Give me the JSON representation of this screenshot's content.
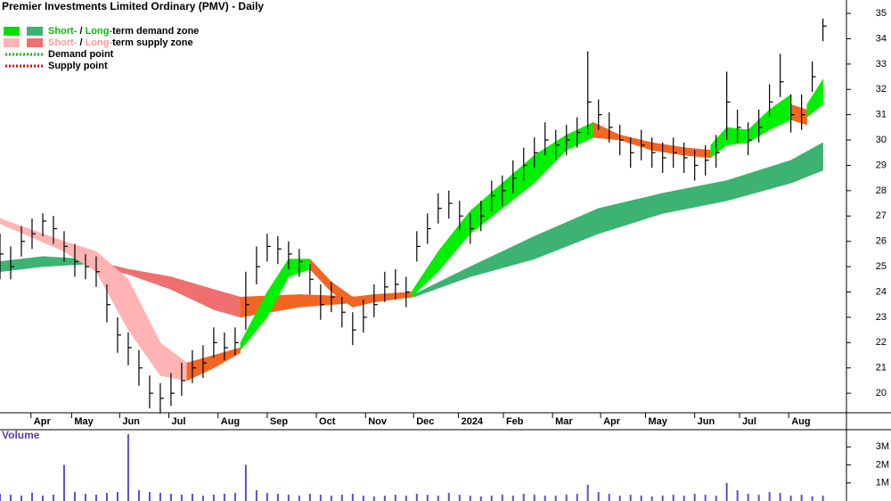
{
  "chart_data": [
    {
      "type": "ohlc",
      "title": "Premier Investments Limited Ordinary (PMV) - Daily",
      "legend": [
        {
          "short": "Short-",
          "sep": " / ",
          "long": "Long-",
          "rest": "term demand zone",
          "colors": [
            "#00e000",
            "#3cb371"
          ],
          "accent": "#00c000"
        },
        {
          "short": "Short-",
          "sep": " / ",
          "long": "Long-",
          "rest": "term supply zone",
          "colors": [
            "#ffb3b3",
            "#f07070"
          ],
          "accent": "#ff9999"
        },
        {
          "text": "Demand point",
          "color": "#00c000"
        },
        {
          "text": "Supply point",
          "color": "#e00000"
        }
      ],
      "xlim": [
        0,
        79.2
      ],
      "xticks": [
        {
          "value": 2.9,
          "label": "Apr"
        },
        {
          "value": 6.7,
          "label": "May"
        },
        {
          "value": 11.2,
          "label": "Jun"
        },
        {
          "value": 15.8,
          "label": "Jul"
        },
        {
          "value": 20.4,
          "label": "Aug"
        },
        {
          "value": 25,
          "label": "Sep"
        },
        {
          "value": 29.6,
          "label": "Oct"
        },
        {
          "value": 34.2,
          "label": "Nov"
        },
        {
          "value": 38.7,
          "label": "Dec"
        },
        {
          "value": 42.9,
          "label": "2024"
        },
        {
          "value": 47.1,
          "label": "Feb"
        },
        {
          "value": 51.7,
          "label": "Mar"
        },
        {
          "value": 56.2,
          "label": "Apr"
        },
        {
          "value": 60.4,
          "label": "May"
        },
        {
          "value": 65,
          "label": "Jun"
        },
        {
          "value": 69.2,
          "label": "Jul"
        },
        {
          "value": 73.8,
          "label": "Aug"
        }
      ],
      "ylim": [
        19.23,
        35.53
      ],
      "yticks": [
        20,
        21,
        22,
        23,
        24,
        25,
        26,
        27,
        28,
        29,
        30,
        31,
        32,
        33,
        34,
        35
      ],
      "color": "#000000",
      "high": [
        26.3,
        25.8,
        26.6,
        26.9,
        27.1,
        27,
        26.4,
        25.9,
        25.5,
        25.4,
        24.3,
        23,
        22.4,
        21.7,
        20.7,
        20.4,
        20.8,
        21.2,
        21.7,
        21.9,
        22.6,
        22.4,
        22.6,
        24.8,
        25.8,
        26.3,
        26.2,
        26,
        25.7,
        25.1,
        24.3,
        24.4,
        23.8,
        23.2,
        23.7,
        24.3,
        24.8,
        24.9,
        24.6,
        26.4,
        27.1,
        27.9,
        28,
        27.6,
        27.1,
        27.6,
        28.4,
        28.6,
        29.2,
        29.7,
        30.1,
        30.7,
        30.4,
        30.6,
        30.9,
        33.5,
        31.6,
        31.1,
        30.6,
        30.1,
        30.4,
        30.1,
        29.9,
        30.1,
        29.9,
        29.6,
        29.8,
        30.2,
        32.7,
        31.2,
        30.7,
        31.2,
        32.2,
        33.4,
        31.8,
        31.8,
        33.1,
        34.8
      ],
      "low": [
        24.5,
        24.5,
        25.4,
        25.7,
        26.2,
        25.9,
        25.2,
        24.6,
        24.5,
        24.2,
        22.8,
        21.6,
        21.1,
        20.3,
        19.4,
        19.2,
        19.5,
        19.9,
        20.4,
        20.6,
        21.4,
        21.3,
        21.5,
        22.5,
        24.3,
        25.2,
        25.1,
        24.9,
        24.6,
        23.9,
        22.9,
        23.2,
        22.6,
        21.9,
        22.4,
        23,
        23.6,
        23.7,
        23.4,
        25.2,
        25.9,
        26.7,
        26.9,
        26.4,
        25.9,
        26.4,
        27.2,
        27.4,
        27.9,
        28.4,
        28.9,
        29.4,
        29.2,
        29.4,
        29.7,
        30.2,
        30.4,
        29.9,
        29.4,
        28.9,
        29.2,
        28.9,
        28.7,
        28.9,
        28.7,
        28.4,
        28.6,
        28.9,
        30,
        29.9,
        29.4,
        29.9,
        30.9,
        31.7,
        30.3,
        30.4,
        31.9,
        33.9
      ],
      "close": [
        25.5,
        25,
        26,
        26.3,
        26.8,
        26.5,
        25.8,
        25.2,
        25,
        24.8,
        23.5,
        22.3,
        21.8,
        21,
        20,
        19.8,
        20,
        20.5,
        21,
        21.2,
        22,
        21.8,
        22,
        23.5,
        25,
        25.8,
        25.7,
        25.5,
        25.2,
        24.5,
        23.5,
        23.8,
        23.2,
        22.5,
        23,
        23.5,
        24.2,
        24.3,
        24,
        25.8,
        26.5,
        27.3,
        27.5,
        27,
        26.5,
        27,
        27.8,
        28,
        28.5,
        29,
        29.5,
        30,
        29.8,
        30,
        30.3,
        31.5,
        31,
        30.5,
        30,
        29.5,
        29.8,
        29.5,
        29.3,
        29.5,
        29.3,
        29,
        29.2,
        29.5,
        31.5,
        30.5,
        30,
        30.5,
        31.5,
        32.3,
        31,
        31,
        32.5,
        34.5
      ],
      "zones": [
        {
          "color": "#3cb371",
          "x": [
            0,
            4,
            8
          ],
          "upper": [
            25.2,
            25.4,
            25.3
          ],
          "lower": [
            24.8,
            25.0,
            25.1
          ]
        },
        {
          "color": "#f07070",
          "x": [
            8,
            12,
            16,
            20,
            22.5
          ],
          "upper": [
            25.3,
            24.9,
            24.6,
            24.1,
            23.8
          ],
          "lower": [
            25.1,
            24.7,
            24.1,
            23.3,
            23.0
          ]
        },
        {
          "color": "#f26522",
          "x": [
            22.5,
            28,
            34,
            38.7
          ],
          "upper": [
            23.8,
            23.9,
            23.8,
            23.9
          ],
          "lower": [
            23.0,
            23.4,
            23.6,
            23.8
          ]
        },
        {
          "color": "#3cb371",
          "x": [
            38.7,
            44,
            50,
            56,
            62,
            68,
            74,
            77
          ],
          "upper": [
            23.9,
            25.0,
            26.2,
            27.3,
            27.9,
            28.4,
            29.2,
            29.9
          ],
          "lower": [
            23.8,
            24.6,
            25.3,
            26.3,
            27.1,
            27.6,
            28.3,
            28.8
          ]
        },
        {
          "color": "#ffb3b3",
          "x": [
            0,
            6,
            9,
            12,
            15,
            17.5
          ],
          "upper": [
            26.9,
            26.0,
            25.6,
            24.5,
            22.0,
            21.2
          ],
          "lower": [
            26.7,
            25.6,
            24.8,
            22.5,
            20.7,
            20.5
          ]
        },
        {
          "color": "#f26522",
          "x": [
            17.5,
            20,
            22.5
          ],
          "upper": [
            21.2,
            21.5,
            21.8
          ],
          "lower": [
            20.5,
            21.0,
            21.6
          ]
        },
        {
          "color": "#00f000",
          "x": [
            22.5,
            25,
            27,
            29
          ],
          "upper": [
            22.0,
            24.0,
            25.3,
            25.3
          ],
          "lower": [
            21.7,
            23.0,
            24.6,
            24.9
          ]
        },
        {
          "color": "#f26522",
          "x": [
            29,
            31,
            33,
            35,
            38.5
          ],
          "upper": [
            25.3,
            24.4,
            23.8,
            23.9,
            24.0
          ],
          "lower": [
            24.9,
            24.0,
            23.4,
            23.6,
            23.8
          ]
        },
        {
          "color": "#00f000",
          "x": [
            38.5,
            41,
            44,
            47,
            50,
            53,
            55.5
          ],
          "upper": [
            24.0,
            25.6,
            27.2,
            28.3,
            29.4,
            30.2,
            30.7
          ],
          "lower": [
            23.8,
            24.8,
            26.3,
            27.3,
            28.3,
            29.6,
            30.1
          ]
        },
        {
          "color": "#f26522",
          "x": [
            55.5,
            58,
            61,
            64,
            66.5
          ],
          "upper": [
            30.7,
            30.2,
            29.9,
            29.7,
            29.6
          ],
          "lower": [
            30.1,
            30.0,
            29.6,
            29.4,
            29.3
          ]
        },
        {
          "color": "#00f000",
          "x": [
            66.5,
            68,
            70,
            72,
            74
          ],
          "upper": [
            29.8,
            30.5,
            30.4,
            31.2,
            31.8
          ],
          "lower": [
            29.3,
            29.8,
            29.9,
            30.4,
            30.8
          ]
        },
        {
          "color": "#f26522",
          "x": [
            74,
            75.5
          ],
          "upper": [
            31.4,
            31.2
          ],
          "lower": [
            30.8,
            30.6
          ]
        },
        {
          "color": "#00f000",
          "x": [
            75.5,
            77
          ],
          "upper": [
            31.4,
            32.4
          ],
          "lower": [
            30.9,
            31.4
          ]
        }
      ]
    },
    {
      "type": "bar",
      "title": "Volume",
      "color": "#5a4fcf",
      "ylim": [
        0,
        3950000
      ],
      "yticks": [
        {
          "value": 1000000,
          "label": "1M"
        },
        {
          "value": 2000000,
          "label": "2M"
        },
        {
          "value": 3000000,
          "label": "3M"
        }
      ],
      "values": [
        400000,
        350000,
        300000,
        450000,
        300000,
        350000,
        2000000,
        500000,
        400000,
        350000,
        450000,
        500000,
        3700000,
        600000,
        500000,
        450000,
        400000,
        350000,
        400000,
        300000,
        350000,
        400000,
        450000,
        2000000,
        600000,
        450000,
        400000,
        350000,
        300000,
        400000,
        350000,
        300000,
        350000,
        400000,
        300000,
        250000,
        300000,
        350000,
        300000,
        400000,
        350000,
        300000,
        450000,
        350000,
        300000,
        250000,
        300000,
        350000,
        300000,
        400000,
        350000,
        300000,
        300000,
        350000,
        400000,
        900000,
        500000,
        400000,
        300000,
        350000,
        300000,
        250000,
        300000,
        350000,
        300000,
        400000,
        350000,
        300000,
        1000000,
        600000,
        400000,
        350000,
        500000,
        450000,
        300000,
        350000,
        250000,
        300000
      ]
    }
  ]
}
